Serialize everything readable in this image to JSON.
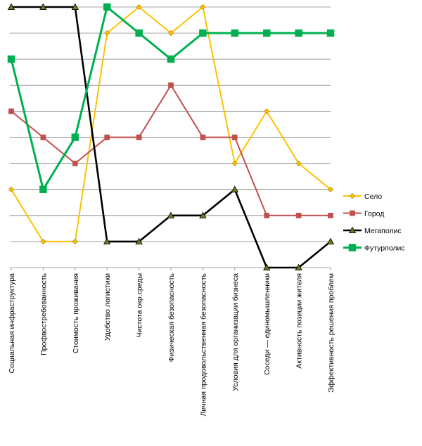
{
  "chart_data": {
    "type": "line",
    "title": "",
    "xlabel": "",
    "ylabel": "",
    "ylim": [
      0,
      10
    ],
    "grid": true,
    "y_axis_labels_shown": false,
    "legend_position": "right",
    "categories": [
      "Социальная инфраструктура",
      "Профвостребованность",
      "Стоимость проживания",
      "Удобство логистики",
      "Чистота окр.среды",
      "Физическая безопасность",
      "Личная продовольственная безопасность",
      "Условия для организации бизнеса",
      "Соседи — единомышленники",
      "Активность позиции жителя",
      "Эффективность решения проблем"
    ],
    "series": [
      {
        "name": "Село",
        "color": "#FFC000",
        "marker": "diamond",
        "values": [
          3,
          1,
          1,
          9,
          10,
          9,
          10,
          4,
          6,
          4,
          3
        ]
      },
      {
        "name": "Город",
        "color": "#C0504D",
        "marker": "square",
        "values": [
          6,
          5,
          4,
          5,
          5,
          7,
          5,
          5,
          2,
          2,
          2
        ]
      },
      {
        "name": "Мегаполис",
        "color": "#000000",
        "marker": "triangle",
        "values": [
          10,
          10,
          10,
          1,
          1,
          2,
          2,
          3,
          0,
          0,
          1
        ]
      },
      {
        "name": "Футурполис",
        "color": "#00B050",
        "marker": "square",
        "values": [
          8,
          3,
          5,
          10,
          9,
          8,
          9,
          9,
          9,
          9,
          9
        ]
      }
    ]
  }
}
